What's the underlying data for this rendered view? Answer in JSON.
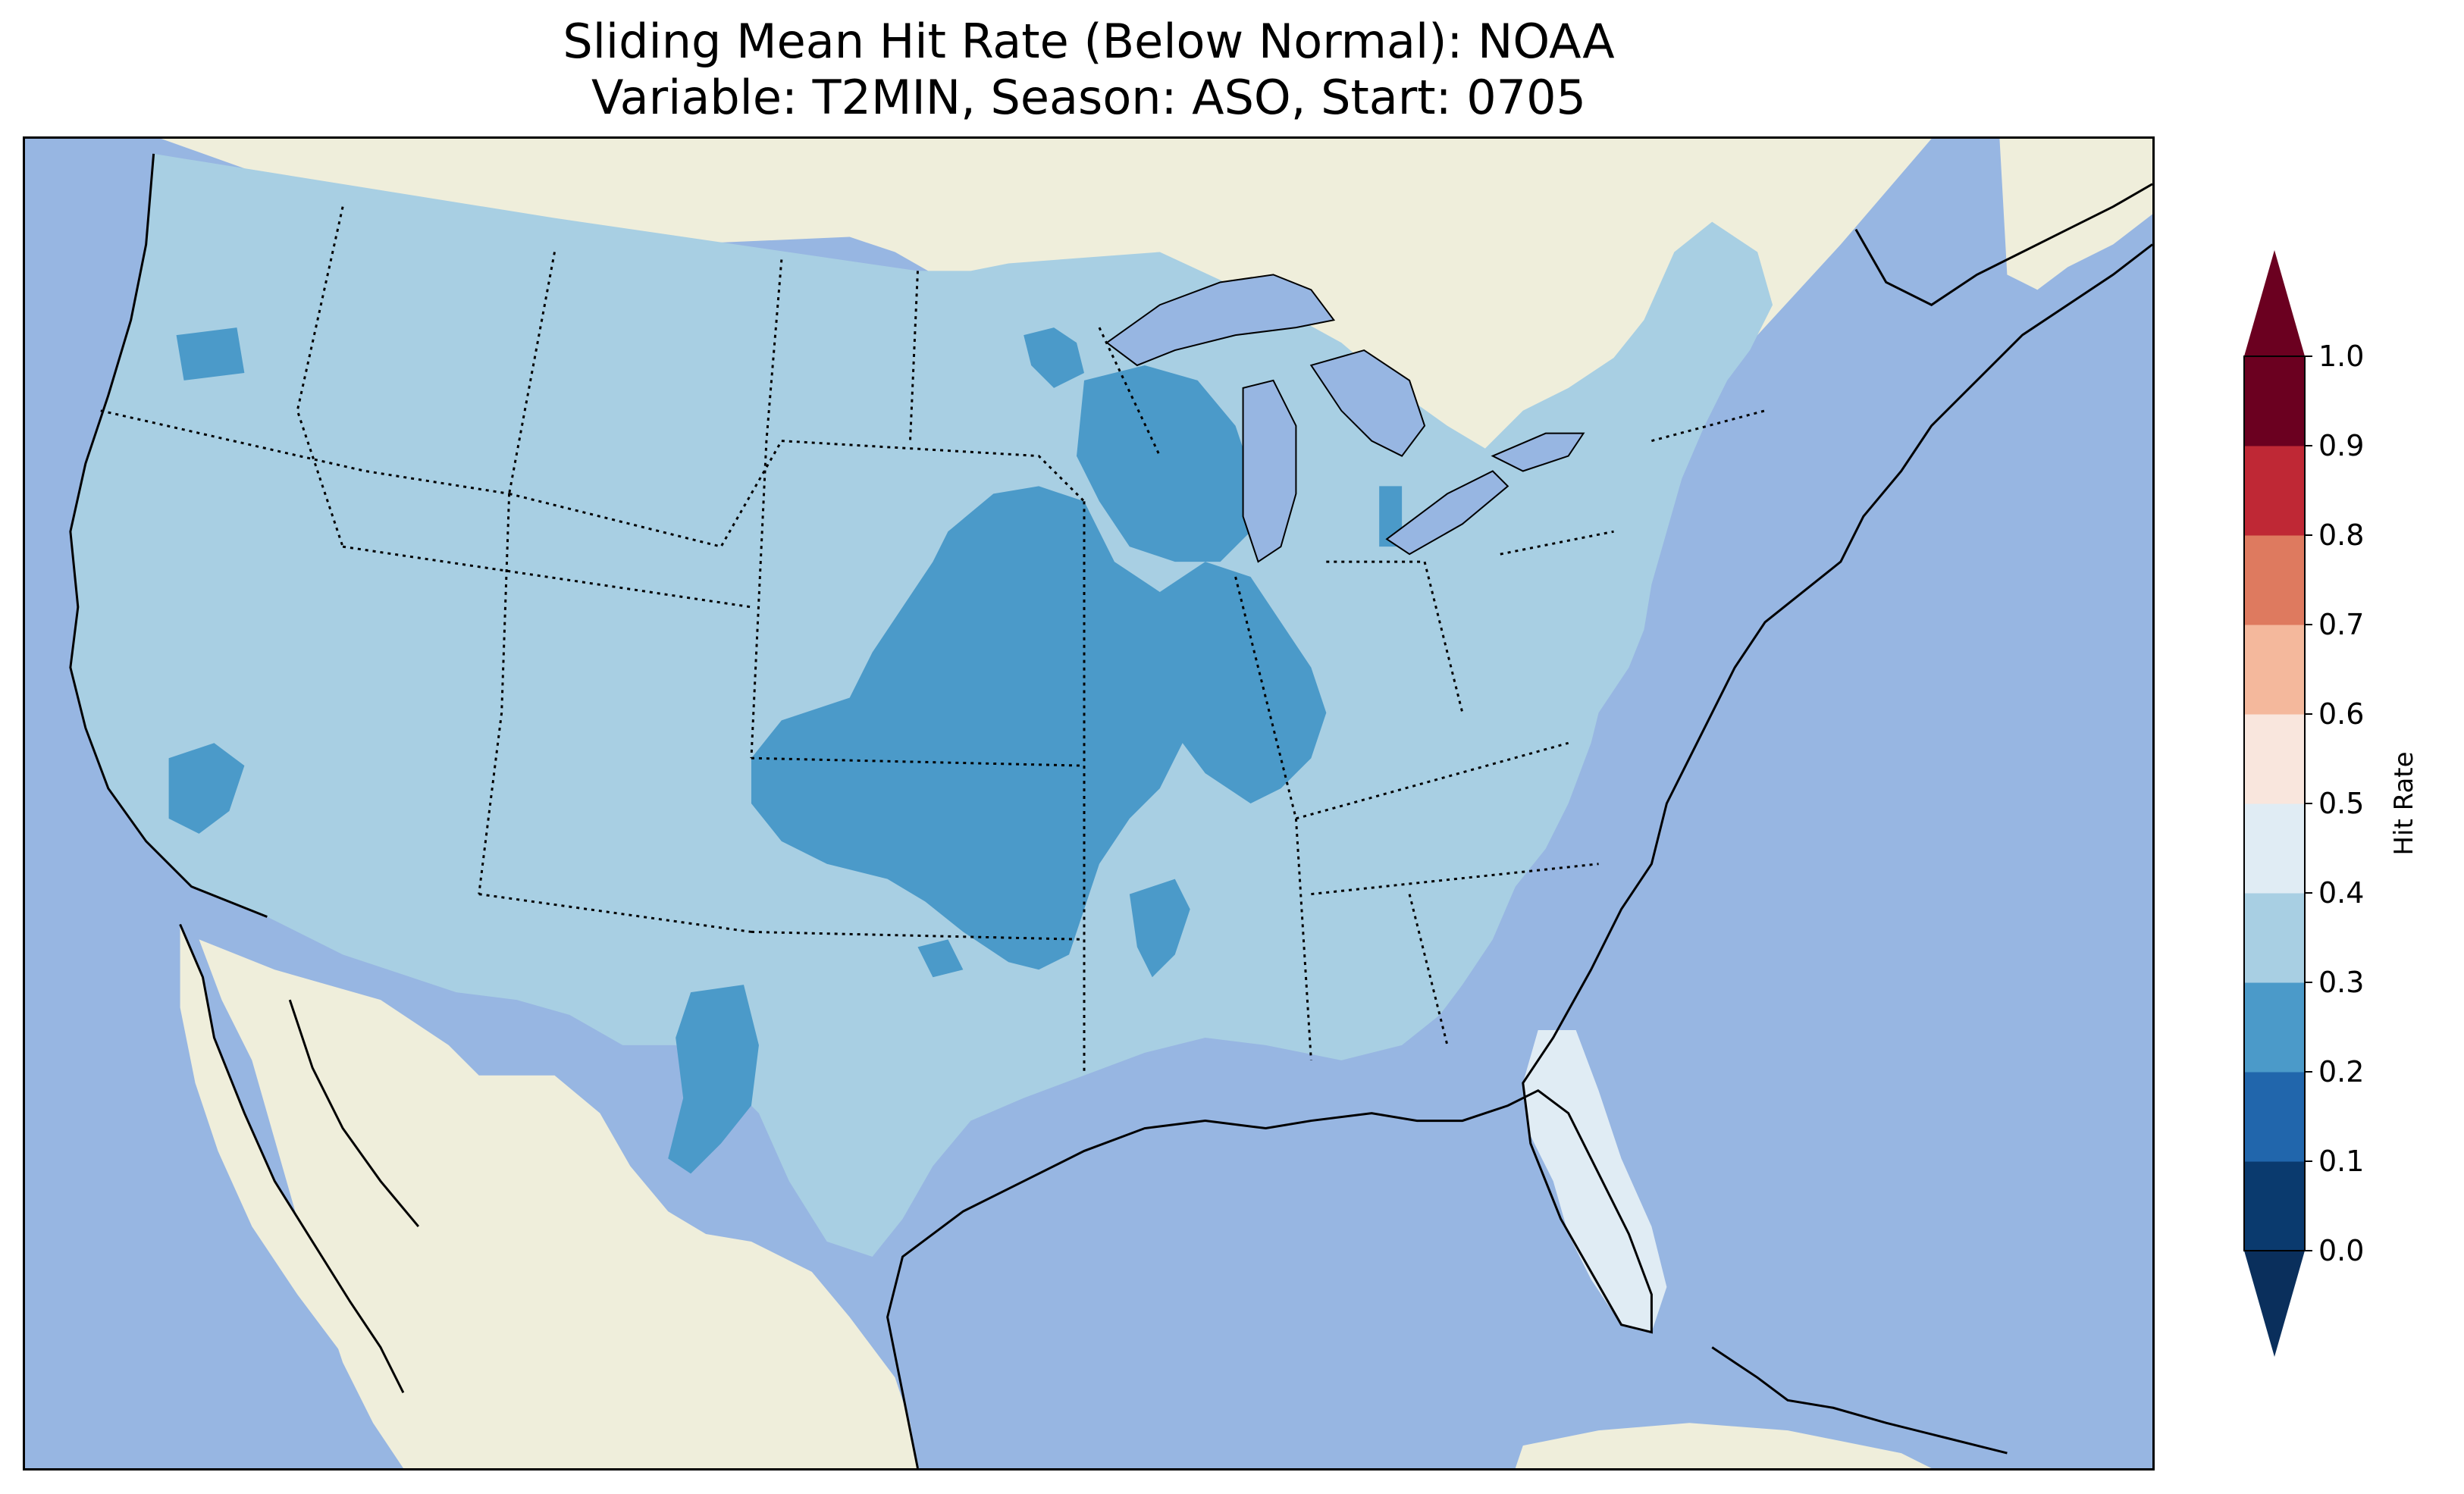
{
  "title": {
    "line1": "Sliding Mean Hit Rate (Below Normal): NOAA",
    "line2": "Variable: T2MIN, Season: ASO, Start: 0705"
  },
  "map": {
    "region": "Contiguous United States",
    "colors": {
      "ocean": "#97b6e2",
      "land": "#efeedb",
      "lakes": "#97b6e2"
    },
    "dominant_class": "0.3-0.4",
    "notable_areas": [
      {
        "name": "Central Plains / Kansas-Missouri-Iowa",
        "class": "0.2-0.3"
      },
      {
        "name": "Wisconsin",
        "class": "0.2-0.3"
      },
      {
        "name": "Southern California",
        "class": "0.2-0.3"
      },
      {
        "name": "West Texas",
        "class": "0.2-0.3"
      },
      {
        "name": "Florida peninsula",
        "class": "0.4-0.5"
      }
    ]
  },
  "colorbar": {
    "label": "Hit Rate",
    "ticks": [
      "0.0",
      "0.1",
      "0.2",
      "0.3",
      "0.4",
      "0.5",
      "0.6",
      "0.7",
      "0.8",
      "0.9",
      "1.0"
    ],
    "colors": [
      "#053061",
      "#2166ac",
      "#4393c3",
      "#92c5de",
      "#d1e5f0",
      "#f7f7f7",
      "#fddbc7",
      "#f4a582",
      "#d6604d",
      "#b2182b",
      "#67001f"
    ],
    "bins": [
      {
        "range": "0.0-0.1",
        "color": "#0a3a6e"
      },
      {
        "range": "0.1-0.2",
        "color": "#2166ac"
      },
      {
        "range": "0.2-0.3",
        "color": "#4b9ac9"
      },
      {
        "range": "0.3-0.4",
        "color": "#a8cfe3"
      },
      {
        "range": "0.4-0.5",
        "color": "#e0ecf4"
      },
      {
        "range": "0.5-0.6",
        "color": "#f9e6dd"
      },
      {
        "range": "0.6-0.7",
        "color": "#f4b89c"
      },
      {
        "range": "0.7-0.8",
        "color": "#de7a5f"
      },
      {
        "range": "0.8-0.9",
        "color": "#bf2835"
      },
      {
        "range": "0.9-1.0",
        "color": "#6b0020"
      }
    ],
    "extend_min_color": "#0a2f5c",
    "extend_max_color": "#6b0020"
  }
}
